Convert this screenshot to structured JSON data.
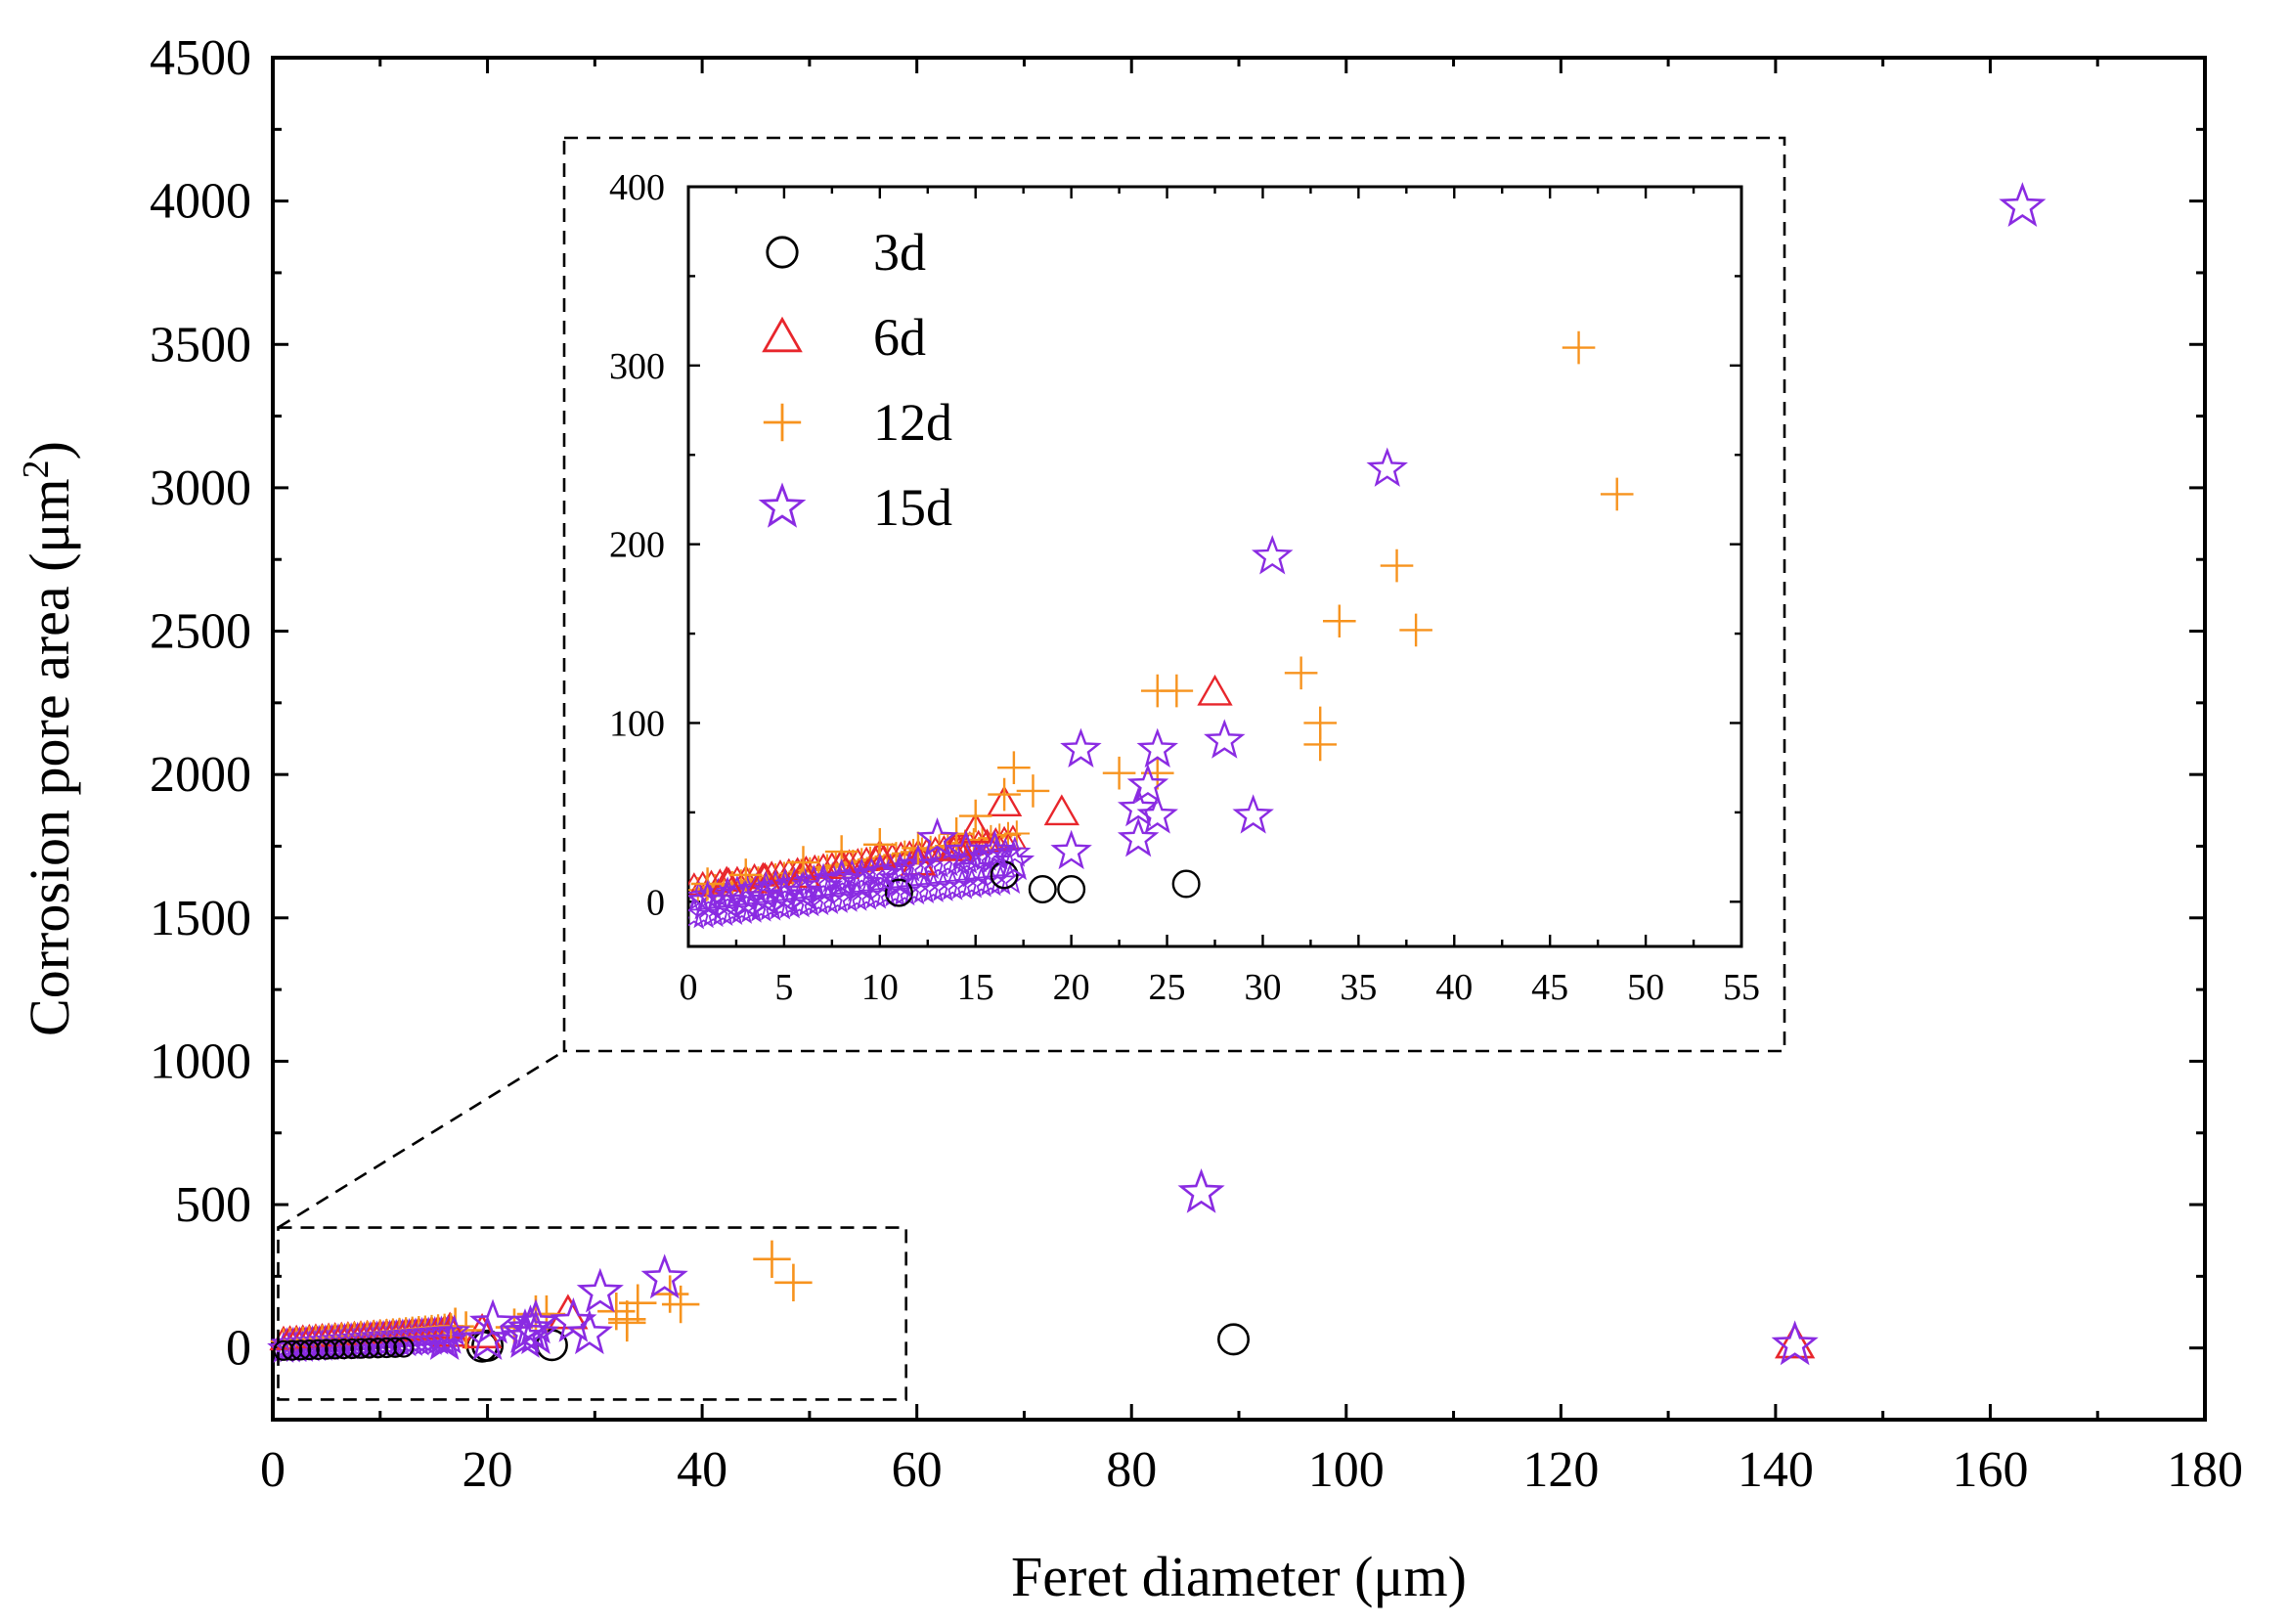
{
  "chart_data": [
    {
      "id": "main",
      "type": "scatter",
      "title": "",
      "xlabel": "Feret diameter (μm)",
      "ylabel_main": "Corrosion pore area (μm",
      "ylabel_sup": "2",
      "ylabel_close": ")",
      "xlim": [
        0,
        180
      ],
      "ylim": [
        -250,
        4500
      ],
      "xticks": [
        0,
        20,
        40,
        60,
        80,
        100,
        120,
        140,
        160,
        180
      ],
      "xtick_labels": [
        "0",
        "20",
        "40",
        "60",
        "80",
        "100",
        "120",
        "140",
        "160",
        "180"
      ],
      "yticks": [
        0,
        500,
        1000,
        1500,
        2000,
        2500,
        3000,
        3500,
        4000,
        4500
      ],
      "ytick_labels": [
        "0",
        "500",
        "1000",
        "1500",
        "2000",
        "2500",
        "3000",
        "3500",
        "4000",
        "4500"
      ],
      "zoom_region": {
        "x": [
          0.5,
          59
        ],
        "y": [
          -180,
          420
        ]
      },
      "series": [
        {
          "name": "3d",
          "marker": "circle",
          "color": "#000000",
          "points": [
            [
              19.5,
              5
            ],
            [
              20,
              8
            ],
            [
              26,
              10
            ],
            [
              89.5,
              30
            ]
          ]
        },
        {
          "name": "6d",
          "marker": "triangle",
          "color": "#e8262c",
          "points": [
            [
              27.5,
              117
            ],
            [
              19.5,
              50
            ],
            [
              16.5,
              55
            ],
            [
              141.8,
              15
            ]
          ]
        },
        {
          "name": "12d",
          "marker": "plus",
          "color": "#f7931e",
          "points": [
            [
              46.5,
              310
            ],
            [
              48.5,
              228
            ],
            [
              37,
              188
            ],
            [
              34,
              157
            ],
            [
              38,
              152
            ],
            [
              32,
              128
            ],
            [
              33,
              100
            ],
            [
              33,
              88
            ],
            [
              24.5,
              118
            ],
            [
              25.5,
              118
            ],
            [
              22.5,
              72
            ],
            [
              17,
              75
            ],
            [
              18,
              62
            ]
          ]
        },
        {
          "name": "15d",
          "marker": "star",
          "color": "#8a2be2",
          "points": [
            [
              163,
              3980
            ],
            [
              86.5,
              540
            ],
            [
              141.8,
              10
            ],
            [
              36.5,
              242
            ],
            [
              30.5,
              193
            ],
            [
              28,
              90
            ],
            [
              20.5,
              85
            ],
            [
              24.5,
              85
            ],
            [
              24,
              65
            ],
            [
              23.5,
              52
            ],
            [
              24.5,
              48
            ],
            [
              29.5,
              48
            ],
            [
              23.5,
              35
            ],
            [
              20,
              28
            ],
            [
              16,
              28
            ]
          ]
        }
      ]
    },
    {
      "id": "inset",
      "type": "scatter",
      "xlim": [
        0,
        55
      ],
      "ylim": [
        -25,
        400
      ],
      "xticks": [
        0,
        5,
        10,
        15,
        20,
        25,
        30,
        35,
        40,
        45,
        50,
        55
      ],
      "xtick_labels": [
        "0",
        "5",
        "10",
        "15",
        "20",
        "25",
        "30",
        "35",
        "40",
        "45",
        "50",
        "55"
      ],
      "yticks": [
        0,
        100,
        200,
        300,
        400
      ],
      "ytick_labels": [
        "0",
        "100",
        "200",
        "300",
        "400"
      ],
      "legend_position": "top-left",
      "series": [
        {
          "name": "3d",
          "marker": "circle",
          "color": "#000000",
          "points": [
            [
              11,
              5
            ],
            [
              16.5,
              15
            ],
            [
              18.5,
              7
            ],
            [
              20,
              7
            ],
            [
              26,
              10
            ]
          ]
        },
        {
          "name": "6d",
          "marker": "triangle",
          "color": "#e8262c",
          "points": [
            [
              27.5,
              117
            ],
            [
              19.5,
              50
            ],
            [
              16.5,
              55
            ],
            [
              12,
              22
            ],
            [
              10,
              25
            ],
            [
              8,
              20
            ],
            [
              6,
              15
            ],
            [
              4,
              12
            ],
            [
              2,
              10
            ],
            [
              14,
              30
            ],
            [
              15,
              40
            ]
          ]
        },
        {
          "name": "12d",
          "marker": "plus",
          "color": "#f7931e",
          "points": [
            [
              46.5,
              310
            ],
            [
              48.5,
              228
            ],
            [
              37,
              188
            ],
            [
              34,
              157
            ],
            [
              38,
              152
            ],
            [
              32,
              128
            ],
            [
              33,
              100
            ],
            [
              33,
              88
            ],
            [
              24.5,
              118
            ],
            [
              25.5,
              118
            ],
            [
              22.5,
              72
            ],
            [
              17,
              75
            ],
            [
              18,
              62
            ],
            [
              16.5,
              60
            ],
            [
              15,
              48
            ],
            [
              10,
              32
            ],
            [
              8,
              28
            ],
            [
              6,
              22
            ],
            [
              12,
              30
            ],
            [
              14,
              38
            ],
            [
              3,
              15
            ],
            [
              1,
              10
            ],
            [
              24.5,
              72
            ]
          ]
        },
        {
          "name": "15d",
          "marker": "star",
          "color": "#8a2be2",
          "points": [
            [
              36.5,
              242
            ],
            [
              30.5,
              193
            ],
            [
              28,
              90
            ],
            [
              20.5,
              85
            ],
            [
              24.5,
              85
            ],
            [
              24,
              65
            ],
            [
              23.5,
              52
            ],
            [
              24.5,
              48
            ],
            [
              29.5,
              48
            ],
            [
              23.5,
              35
            ],
            [
              20,
              28
            ],
            [
              16,
              28
            ],
            [
              13,
              35
            ],
            [
              14.5,
              28
            ],
            [
              12,
              20
            ],
            [
              10,
              15
            ],
            [
              9,
              10
            ],
            [
              8,
              12
            ],
            [
              7,
              8
            ],
            [
              6,
              5
            ],
            [
              5,
              3
            ],
            [
              4,
              2
            ],
            [
              3,
              0
            ],
            [
              2,
              0
            ],
            [
              1,
              0
            ],
            [
              11,
              12
            ],
            [
              15,
              18
            ],
            [
              17,
              22
            ]
          ]
        }
      ]
    }
  ]
}
